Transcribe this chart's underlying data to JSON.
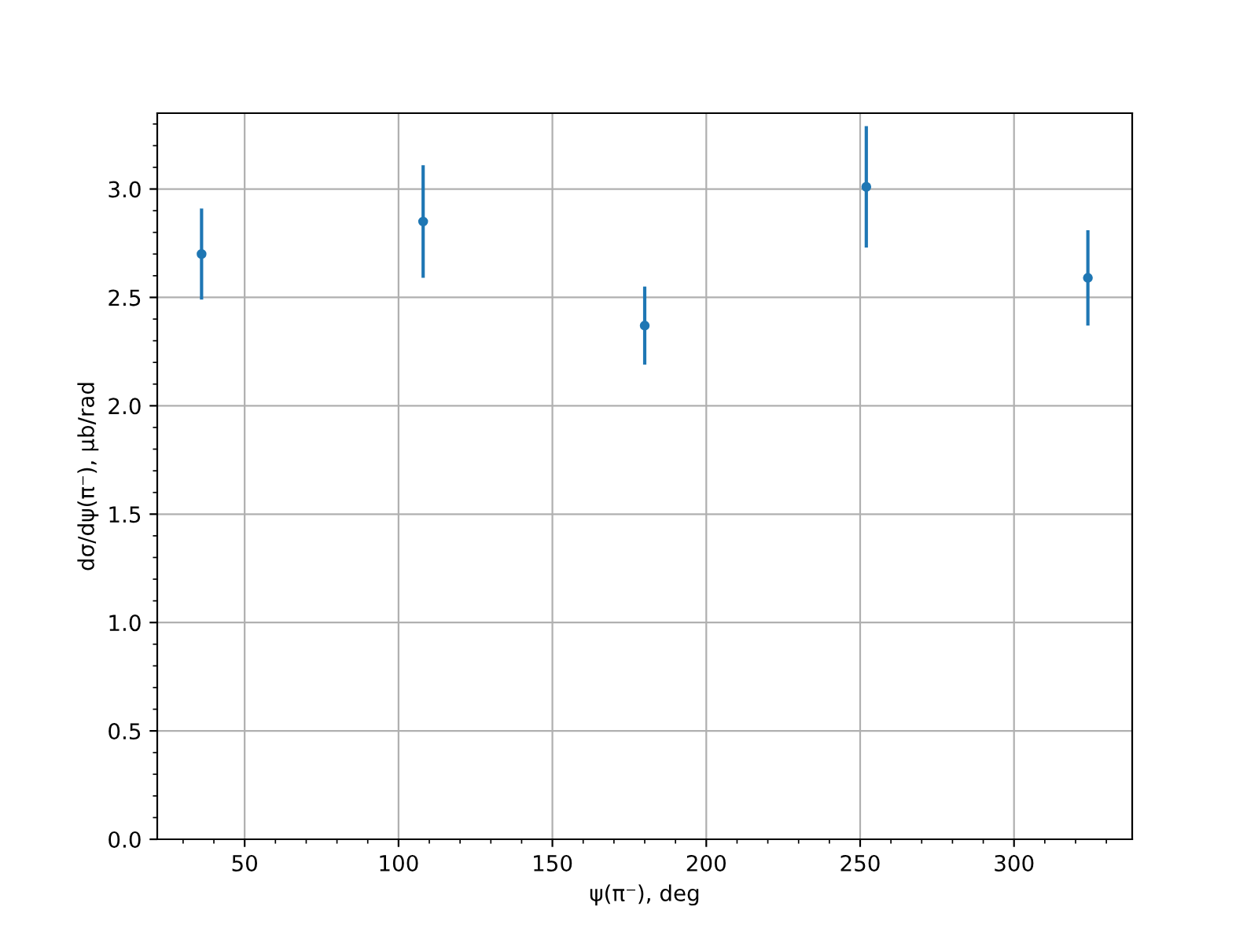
{
  "chart_data": {
    "type": "scatter",
    "xlabel": "ψ(π⁻), deg",
    "ylabel": "dσ/dψ(π⁻), μb/rad",
    "x": [
      36,
      108,
      180,
      252,
      324
    ],
    "series": [
      {
        "color": "#1f77b4",
        "values": [
          2.7,
          2.85,
          2.37,
          3.01,
          2.59
        ],
        "errors": [
          0.21,
          0.26,
          0.18,
          0.28,
          0.22
        ]
      }
    ],
    "xlim": [
      21.6,
      338.4
    ],
    "xticks": [
      50,
      100,
      150,
      200,
      250,
      300
    ],
    "ylim": [
      0,
      3.35
    ],
    "yticks": [
      {
        "value": 0,
        "label": "0.0"
      },
      {
        "value": 0.5,
        "label": "0.5"
      },
      {
        "value": 1,
        "label": "1.0"
      },
      {
        "value": 1.5,
        "label": "1.5"
      },
      {
        "value": 2,
        "label": "2.0"
      },
      {
        "value": 2.5,
        "label": "2.5"
      },
      {
        "value": 3,
        "label": "3.0"
      }
    ],
    "grid": true,
    "marker": "circle",
    "legend": false
  }
}
